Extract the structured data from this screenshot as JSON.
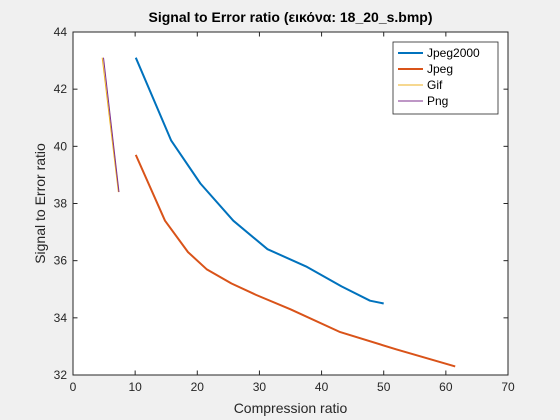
{
  "chart_data": {
    "type": "line",
    "title": "Signal to Error ratio (εικόνα: 18_20_s.bmp)",
    "xlabel": "Compression ratio",
    "ylabel": "Signal to Error ratio",
    "xlim": [
      0,
      70
    ],
    "ylim": [
      32,
      44
    ],
    "xticks": [
      0,
      10,
      20,
      30,
      40,
      50,
      60,
      70
    ],
    "yticks": [
      32,
      34,
      36,
      38,
      40,
      42,
      44
    ],
    "grid": false,
    "legend_position": "top-right",
    "series": [
      {
        "name": "Jpeg2000",
        "color": "#0072bd",
        "x": [
          10.1,
          15.8,
          20.5,
          25.8,
          31.3,
          37.5,
          43.2,
          47.8,
          50.0
        ],
        "y": [
          43.1,
          40.2,
          38.7,
          37.4,
          36.4,
          35.8,
          35.1,
          34.6,
          34.5
        ]
      },
      {
        "name": "Jpeg",
        "color": "#d95319",
        "x": [
          10.1,
          14.8,
          18.5,
          21.5,
          25.5,
          29.5,
          35.0,
          43.0,
          52.0,
          61.5
        ],
        "y": [
          39.7,
          37.4,
          36.3,
          35.7,
          35.2,
          34.8,
          34.3,
          33.5,
          32.9,
          32.3
        ]
      },
      {
        "name": "Gif",
        "color": "#edb120",
        "x": [
          4.7,
          7.3
        ],
        "y": [
          43.1,
          38.4
        ]
      },
      {
        "name": "Png",
        "color": "#7e2f8e",
        "x": [
          4.9,
          7.4
        ],
        "y": [
          43.1,
          38.4
        ]
      }
    ]
  }
}
